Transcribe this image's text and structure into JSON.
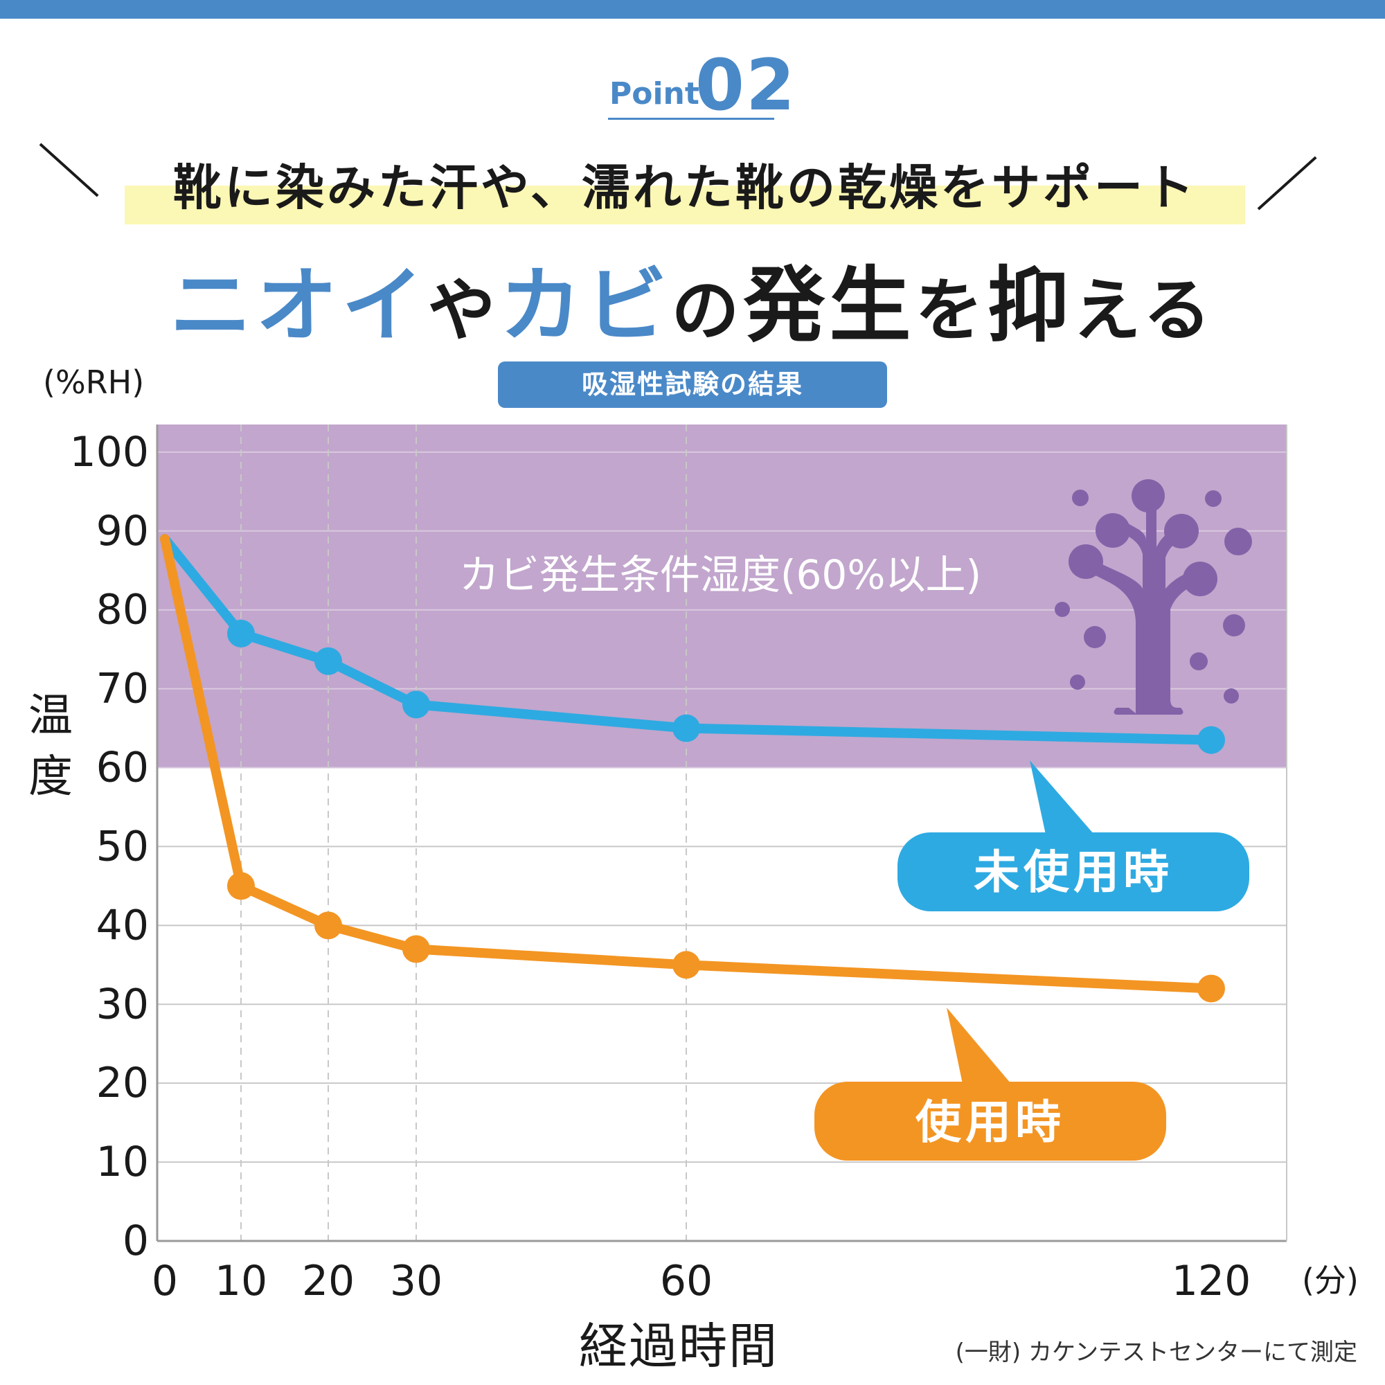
{
  "header": {
    "point_word": "Point",
    "point_number": "02",
    "subtitle": "靴に染みた汗や、濡れた靴の乾燥をサポート",
    "headline_part1": "ニオイ",
    "headline_part2": "や",
    "headline_part3": "カビ",
    "headline_part4": "の",
    "headline_part5": "発生",
    "headline_part6": "を",
    "headline_part7": "抑",
    "headline_part8": "える",
    "test_badge": "吸湿性試験の結果"
  },
  "colors": {
    "accent_blue": "#4a89c8",
    "zone_purple": "#c2a6cd",
    "mold_icon": "#8462a8",
    "unused_line": "#2eaae2",
    "used_line": "#f39523",
    "highlight": "#fbf7b4"
  },
  "footer": {
    "credit": "(一財) カケンテストセンターにて測定"
  },
  "chart_data": {
    "type": "line",
    "title": "吸湿性試験の結果",
    "ylabel": "温度",
    "y_unit": "(%RH)",
    "xlabel": "経過時間",
    "x_unit": "(分)",
    "x": [
      0,
      10,
      20,
      30,
      60,
      120
    ],
    "x_tick_labels": [
      "0",
      "10",
      "20",
      "30",
      "60",
      "120"
    ],
    "ylim": [
      0,
      100
    ],
    "y_ticks": [
      0,
      10,
      20,
      30,
      40,
      50,
      60,
      70,
      80,
      90,
      100
    ],
    "threshold_zone": {
      "from": 60,
      "to": 100,
      "label": "カビ発生条件湿度(60%以上)"
    },
    "series": [
      {
        "name": "未使用時",
        "color": "#2eaae2",
        "values": [
          89,
          77,
          73.5,
          68,
          65,
          63.5
        ]
      },
      {
        "name": "使用時",
        "color": "#f39523",
        "values": [
          89,
          45,
          40,
          37,
          35,
          32
        ]
      }
    ],
    "grid": true,
    "legend": "callouts"
  }
}
